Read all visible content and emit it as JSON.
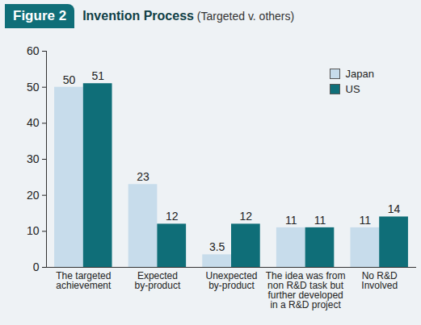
{
  "chart_data": {
    "type": "bar",
    "title": "Figure 2",
    "subtitle": "Invention Process (Targeted v. others)",
    "categories": [
      "The targeted\nachievement",
      "Expected\nby-product",
      "Unexpected\nby-product",
      "The idea was from\nnon R&D task but\nfurther developed\nin a R&D project",
      "No R&D\nInvolved"
    ],
    "series": [
      {
        "name": "Japan",
        "color": "#c7dceb",
        "values": [
          50,
          23,
          3.5,
          11,
          11
        ]
      },
      {
        "name": "US",
        "color": "#0f6e78",
        "values": [
          51,
          12,
          12,
          11,
          14
        ]
      }
    ],
    "ylim": [
      0,
      60
    ],
    "yticks": [
      0,
      10,
      20,
      30,
      40,
      50,
      60
    ],
    "grid": false,
    "legend": "top-right",
    "data_labels": true
  }
}
